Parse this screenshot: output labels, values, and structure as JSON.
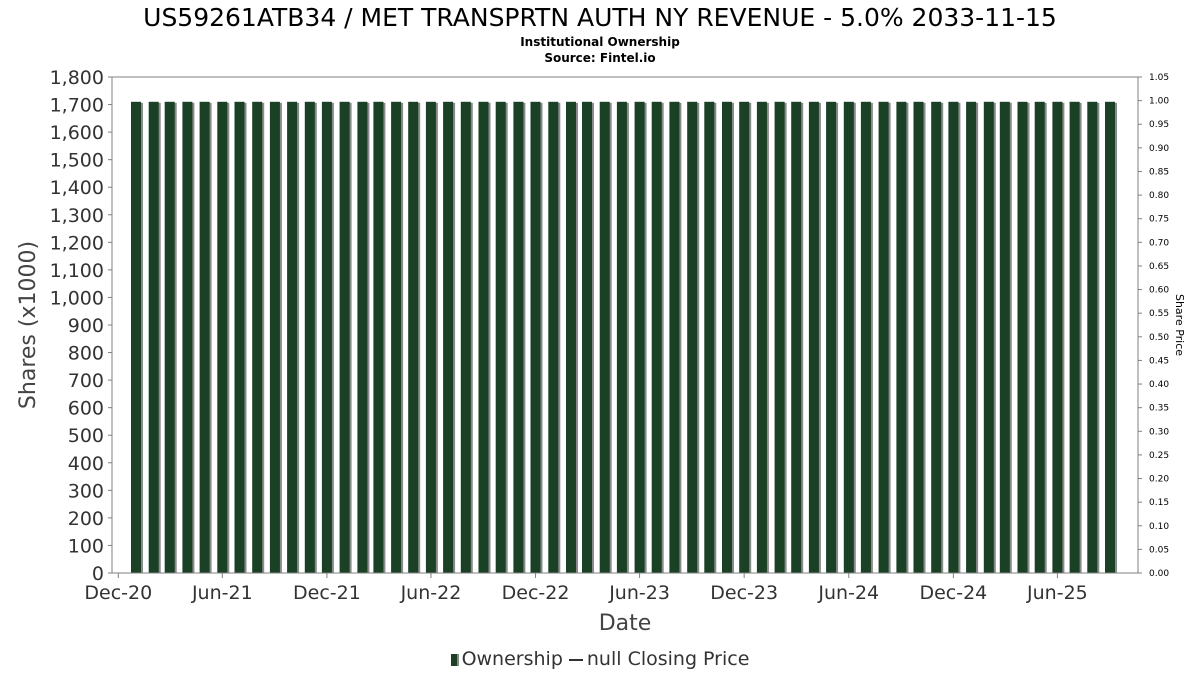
{
  "chart_data": {
    "type": "bar",
    "title": "US59261ATB34 / MET TRANSPRTN AUTH NY REVENUE - 5.0% 2033-11-15",
    "subtitle": [
      "Institutional Ownership",
      "Source: Fintel.io"
    ],
    "xlabel": "Date",
    "ylabel": "Shares (x1000)",
    "y2label": "Share Price",
    "ylim": [
      0,
      1800
    ],
    "y2lim": [
      0,
      1.05
    ],
    "xlim": [
      "2020-11-20",
      "2025-10-20"
    ],
    "yticks": [
      0,
      100,
      200,
      300,
      400,
      500,
      600,
      700,
      800,
      900,
      1000,
      1100,
      1200,
      1300,
      1400,
      1500,
      1600,
      1700,
      1800
    ],
    "yticklabels": [
      "0",
      "100",
      "200",
      "300",
      "400",
      "500",
      "600",
      "700",
      "800",
      "900",
      "1,000",
      "1,100",
      "1,200",
      "1,300",
      "1,400",
      "1,500",
      "1,600",
      "1,700",
      "1,800"
    ],
    "y2ticklabels": [
      "0.00",
      "0.05",
      "0.10",
      "0.15",
      "0.20",
      "0.25",
      "0.30",
      "0.35",
      "0.40",
      "0.45",
      "0.50",
      "0.55",
      "0.60",
      "0.65",
      "0.70",
      "0.75",
      "0.80",
      "0.85",
      "0.90",
      "0.95",
      "1.00",
      "1.05"
    ],
    "xticks": [
      {
        "date": "2020-12-01",
        "label": "Dec-20"
      },
      {
        "date": "2021-06-01",
        "label": "Jun-21"
      },
      {
        "date": "2021-12-01",
        "label": "Dec-21"
      },
      {
        "date": "2022-06-01",
        "label": "Jun-22"
      },
      {
        "date": "2022-12-01",
        "label": "Dec-22"
      },
      {
        "date": "2023-06-01",
        "label": "Jun-23"
      },
      {
        "date": "2023-12-01",
        "label": "Dec-23"
      },
      {
        "date": "2024-06-01",
        "label": "Jun-24"
      },
      {
        "date": "2024-12-01",
        "label": "Dec-24"
      },
      {
        "date": "2025-06-01",
        "label": "Jun-25"
      }
    ],
    "grid": false,
    "bar_color": "#1a4025",
    "bar_shadow_color": "#8a8a8a",
    "series": [
      {
        "name": "Ownership",
        "points": [
          {
            "x": "2021-01-01",
            "y": 1710
          },
          {
            "x": "2021-02-01",
            "y": 1710
          },
          {
            "x": "2021-03-01",
            "y": 1710
          },
          {
            "x": "2021-04-01",
            "y": 1710
          },
          {
            "x": "2021-05-01",
            "y": 1710
          },
          {
            "x": "2021-06-01",
            "y": 1710
          },
          {
            "x": "2021-07-01",
            "y": 1710
          },
          {
            "x": "2021-08-01",
            "y": 1710
          },
          {
            "x": "2021-09-01",
            "y": 1710
          },
          {
            "x": "2021-10-01",
            "y": 1710
          },
          {
            "x": "2021-11-01",
            "y": 1710
          },
          {
            "x": "2021-12-01",
            "y": 1710
          },
          {
            "x": "2022-01-01",
            "y": 1710
          },
          {
            "x": "2022-02-01",
            "y": 1710
          },
          {
            "x": "2022-03-01",
            "y": 1710
          },
          {
            "x": "2022-04-01",
            "y": 1710
          },
          {
            "x": "2022-05-01",
            "y": 1710
          },
          {
            "x": "2022-06-01",
            "y": 1710
          },
          {
            "x": "2022-07-01",
            "y": 1710
          },
          {
            "x": "2022-08-01",
            "y": 1710
          },
          {
            "x": "2022-09-01",
            "y": 1710
          },
          {
            "x": "2022-10-01",
            "y": 1710
          },
          {
            "x": "2022-11-01",
            "y": 1710
          },
          {
            "x": "2022-12-01",
            "y": 1710
          },
          {
            "x": "2023-01-01",
            "y": 1710
          },
          {
            "x": "2023-02-01",
            "y": 1710
          },
          {
            "x": "2023-03-01",
            "y": 1710
          },
          {
            "x": "2023-04-01",
            "y": 1710
          },
          {
            "x": "2023-05-01",
            "y": 1710
          },
          {
            "x": "2023-06-01",
            "y": 1710
          },
          {
            "x": "2023-07-01",
            "y": 1710
          },
          {
            "x": "2023-08-01",
            "y": 1710
          },
          {
            "x": "2023-09-01",
            "y": 1710
          },
          {
            "x": "2023-10-01",
            "y": 1710
          },
          {
            "x": "2023-11-01",
            "y": 1710
          },
          {
            "x": "2023-12-01",
            "y": 1710
          },
          {
            "x": "2024-01-01",
            "y": 1710
          },
          {
            "x": "2024-02-01",
            "y": 1710
          },
          {
            "x": "2024-03-01",
            "y": 1710
          },
          {
            "x": "2024-04-01",
            "y": 1710
          },
          {
            "x": "2024-05-01",
            "y": 1710
          },
          {
            "x": "2024-06-01",
            "y": 1710
          },
          {
            "x": "2024-07-01",
            "y": 1710
          },
          {
            "x": "2024-08-01",
            "y": 1710
          },
          {
            "x": "2024-09-01",
            "y": 1710
          },
          {
            "x": "2024-10-01",
            "y": 1710
          },
          {
            "x": "2024-11-01",
            "y": 1710
          },
          {
            "x": "2024-12-01",
            "y": 1710
          },
          {
            "x": "2025-01-01",
            "y": 1710
          },
          {
            "x": "2025-02-01",
            "y": 1710
          },
          {
            "x": "2025-03-01",
            "y": 1710
          },
          {
            "x": "2025-04-01",
            "y": 1710
          },
          {
            "x": "2025-05-01",
            "y": 1710
          },
          {
            "x": "2025-06-01",
            "y": 1710
          },
          {
            "x": "2025-07-01",
            "y": 1710
          },
          {
            "x": "2025-08-01",
            "y": 1710
          },
          {
            "x": "2025-09-01",
            "y": 1710
          }
        ]
      },
      {
        "name": "null Closing Price",
        "points": []
      }
    ],
    "legend": {
      "position": "bottom",
      "ownership_label": "Ownership",
      "price_label": "null Closing Price"
    }
  }
}
